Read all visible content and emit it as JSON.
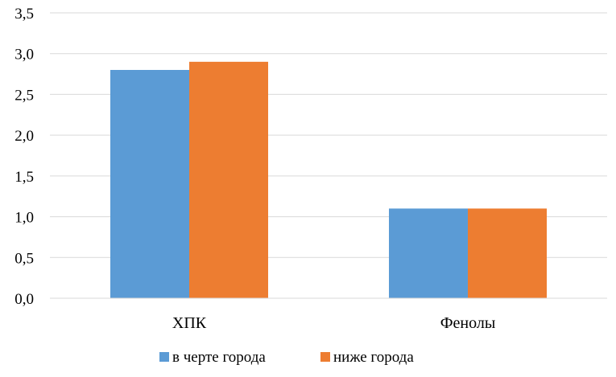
{
  "chart_data": {
    "type": "bar",
    "categories": [
      "ХПК",
      "Фенолы"
    ],
    "series": [
      {
        "name": "в черте города",
        "values": [
          2.8,
          1.1
        ],
        "color": "#5B9BD5"
      },
      {
        "name": "ниже города",
        "values": [
          2.9,
          1.1
        ],
        "color": "#ED7D31"
      }
    ],
    "ylim": [
      0,
      3.5
    ],
    "yticks": [
      0.0,
      0.5,
      1.0,
      1.5,
      2.0,
      2.5,
      3.0,
      3.5
    ],
    "ytick_labels": [
      "0,0",
      "0,5",
      "1,0",
      "1,5",
      "2,0",
      "2,5",
      "3,0",
      "3,5"
    ],
    "grid": true,
    "legend": "bottom",
    "title": "",
    "xlabel": "",
    "ylabel": ""
  }
}
